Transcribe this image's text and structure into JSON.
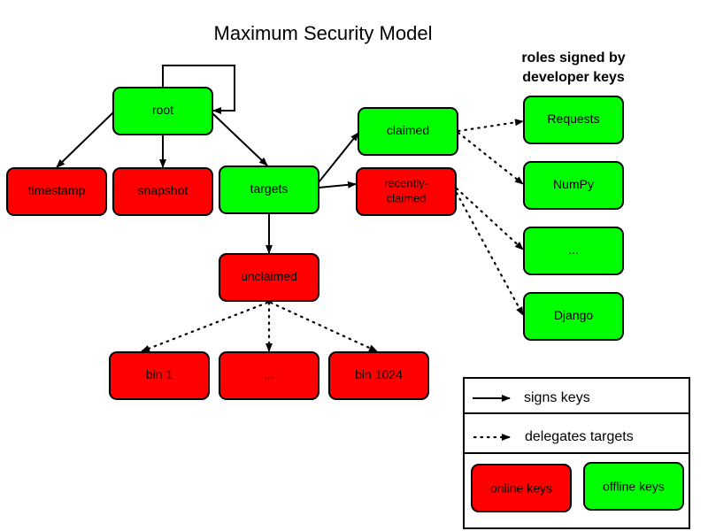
{
  "title": "Maximum Security Model",
  "roles_heading": [
    "roles signed by",
    "developer keys"
  ],
  "colors": {
    "online": "#ff0000",
    "offline": "#00ff00"
  },
  "nodes": {
    "root": {
      "label": "root",
      "kind": "offline"
    },
    "timestamp": {
      "label": "timestamp",
      "kind": "online"
    },
    "snapshot": {
      "label": "snapshot",
      "kind": "online"
    },
    "targets": {
      "label": "targets",
      "kind": "offline"
    },
    "claimed": {
      "label": "claimed",
      "kind": "offline"
    },
    "recently_claimed": {
      "label": [
        "recently-",
        "claimed"
      ],
      "kind": "online"
    },
    "unclaimed": {
      "label": "unclaimed",
      "kind": "online"
    },
    "bin1": {
      "label": "bin 1",
      "kind": "online"
    },
    "bin_ellipsis": {
      "label": "...",
      "kind": "online"
    },
    "bin1024": {
      "label": "bin 1024",
      "kind": "online"
    },
    "requests": {
      "label": "Requests",
      "kind": "offline"
    },
    "numpy": {
      "label": "NumPy",
      "kind": "offline"
    },
    "dev_ellipsis": {
      "label": "...",
      "kind": "offline"
    },
    "django": {
      "label": "Django",
      "kind": "offline"
    }
  },
  "edges": [
    {
      "from": "root",
      "to": "root",
      "style": "signs"
    },
    {
      "from": "root",
      "to": "timestamp",
      "style": "signs"
    },
    {
      "from": "root",
      "to": "snapshot",
      "style": "signs"
    },
    {
      "from": "root",
      "to": "targets",
      "style": "signs"
    },
    {
      "from": "targets",
      "to": "claimed",
      "style": "signs"
    },
    {
      "from": "targets",
      "to": "recently_claimed",
      "style": "signs"
    },
    {
      "from": "targets",
      "to": "unclaimed",
      "style": "signs"
    },
    {
      "from": "claimed",
      "to": "requests",
      "style": "delegates"
    },
    {
      "from": "claimed",
      "to": "numpy",
      "style": "delegates"
    },
    {
      "from": "recently_claimed",
      "to": "dev_ellipsis",
      "style": "delegates"
    },
    {
      "from": "recently_claimed",
      "to": "django",
      "style": "delegates"
    },
    {
      "from": "unclaimed",
      "to": "bin1",
      "style": "delegates"
    },
    {
      "from": "unclaimed",
      "to": "bin_ellipsis",
      "style": "delegates"
    },
    {
      "from": "unclaimed",
      "to": "bin1024",
      "style": "delegates"
    }
  ],
  "legend": {
    "signs": "signs keys",
    "delegates": "delegates targets",
    "online": "online keys",
    "offline": "offline keys"
  }
}
